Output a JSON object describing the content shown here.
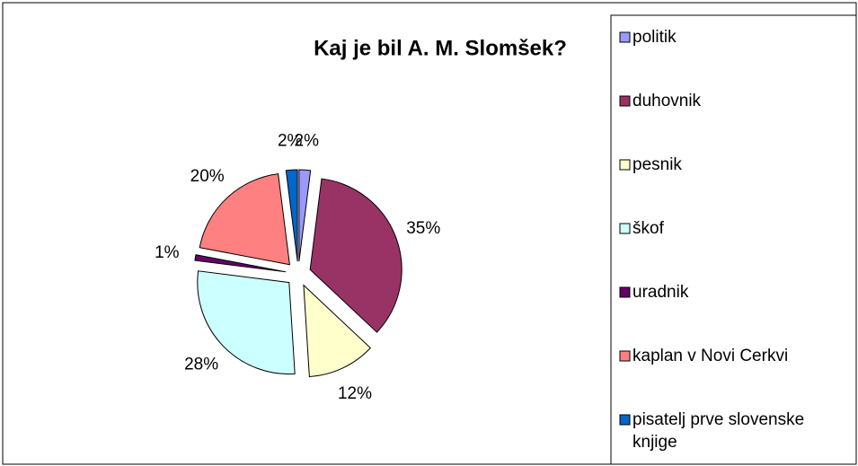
{
  "chart_data": {
    "type": "pie",
    "title": "Kaj je bil A. M. Slomšek?",
    "categories": [
      "politik",
      "duhovnik",
      "pesnik",
      "škof",
      "uradnik",
      "kaplan v Novi Cerkvi",
      "pisatelj prve slovenske knjige"
    ],
    "values": [
      2,
      35,
      12,
      28,
      1,
      20,
      2
    ],
    "value_labels": [
      "2%",
      "35%",
      "12%",
      "28%",
      "1%",
      "20%",
      "2%"
    ],
    "colors": [
      "#9999ff",
      "#993366",
      "#ffffcc",
      "#ccffff",
      "#660066",
      "#ff8080",
      "#0066cc"
    ],
    "legend": "right"
  }
}
